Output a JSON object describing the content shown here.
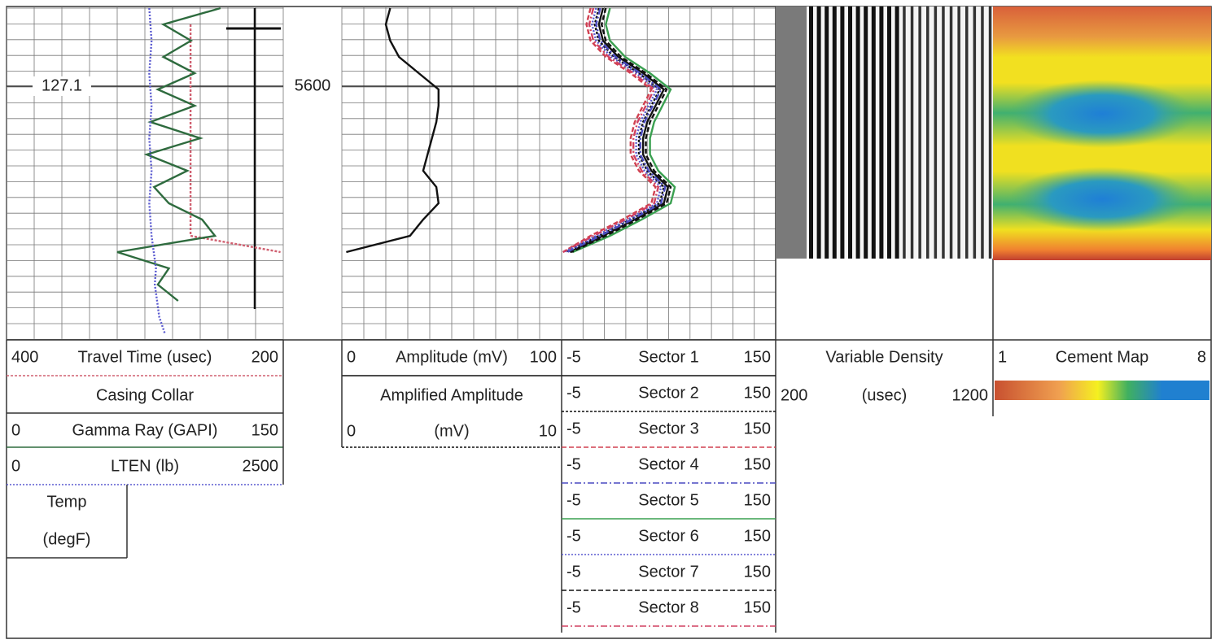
{
  "depth_label": 5600,
  "tension_label": 127.1,
  "track1": [
    {
      "left": 400,
      "name": "Travel Time (usec)",
      "right": 200,
      "color": "#d06070",
      "dash": "3 2",
      "values": [
        null,
        267,
        267,
        267,
        267,
        267,
        267,
        267,
        267,
        267,
        267,
        267,
        267,
        267,
        267,
        202
      ]
    },
    {
      "name": "Casing Collar"
    },
    {
      "left": 0,
      "name": "Gamma Ray (GAPI)",
      "right": 150,
      "color": "#2e6b3e",
      "values": [
        116,
        85,
        100,
        85,
        102,
        82,
        102,
        78,
        105,
        76,
        98,
        80,
        88,
        106,
        113,
        60,
        88,
        82,
        93
      ]
    },
    {
      "left": 0,
      "name": "LTEN (lb)",
      "right": 2500,
      "color": "#5a5ad0",
      "dash": "2 2",
      "values": [
        1290,
        1300,
        1310,
        1300,
        1290,
        1300,
        1310,
        1300,
        1290,
        1300,
        1310,
        1300,
        1290,
        1300,
        1310,
        1330,
        1350,
        1340,
        1360,
        1380,
        1430
      ]
    },
    {
      "name": "Temp",
      "unit": "(degF)"
    }
  ],
  "track2": [
    {
      "left": 0,
      "name": "Amplitude (mV)",
      "right": 100,
      "color": "#111111",
      "values": [
        22,
        20,
        22,
        26,
        35,
        44,
        44,
        43,
        41,
        39,
        37,
        43,
        44,
        37,
        31,
        2
      ]
    },
    {
      "name": "Amplified Amplitude",
      "left": 0,
      "unit": "(mV)",
      "right": 10,
      "color": "#111111",
      "dash": "3 2"
    }
  ],
  "track3": [
    {
      "left": -5,
      "name": "Sector 1",
      "right": 150,
      "color": "#111111",
      "values": [
        25,
        22,
        25,
        36,
        54,
        69,
        63,
        57,
        54,
        54,
        60,
        72,
        69,
        48,
        25,
        1
      ]
    },
    {
      "left": -5,
      "name": "Sector 2",
      "right": 150,
      "color": "#111111",
      "dash": "3 2",
      "values": [
        22,
        19,
        22,
        33,
        51,
        66,
        60,
        54,
        51,
        51,
        57,
        69,
        66,
        45,
        22,
        -2
      ]
    },
    {
      "left": -5,
      "name": "Sector 3",
      "right": 150,
      "color": "#d04050",
      "dash": "6 3",
      "values": [
        16,
        13,
        16,
        27,
        45,
        60,
        54,
        48,
        45,
        45,
        51,
        63,
        60,
        39,
        16,
        -4
      ]
    },
    {
      "left": -5,
      "name": "Sector 4",
      "right": 150,
      "color": "#4a4ac0",
      "dash": "8 3 2 3",
      "values": [
        23,
        20,
        23,
        34,
        52,
        67,
        61,
        55,
        52,
        52,
        58,
        70,
        67,
        46,
        23,
        -1
      ]
    },
    {
      "left": -5,
      "name": "Sector 5",
      "right": 150,
      "color": "#3aa050",
      "values": [
        30,
        27,
        30,
        41,
        59,
        74,
        68,
        62,
        59,
        59,
        65,
        77,
        74,
        53,
        30,
        3
      ]
    },
    {
      "left": -5,
      "name": "Sector 6",
      "right": 150,
      "color": "#5a5ad0",
      "dash": "2 2",
      "values": [
        20,
        17,
        20,
        31,
        49,
        64,
        58,
        52,
        49,
        49,
        55,
        67,
        64,
        43,
        20,
        -3
      ]
    },
    {
      "left": -5,
      "name": "Sector 7",
      "right": 150,
      "color": "#111111",
      "dash": "6 3",
      "values": [
        27,
        24,
        27,
        38,
        56,
        71,
        65,
        59,
        56,
        56,
        62,
        74,
        71,
        50,
        27,
        2
      ]
    },
    {
      "left": -5,
      "name": "Sector 8",
      "right": 150,
      "color": "#d04060",
      "dash": "8 3 2 3",
      "values": [
        18,
        15,
        18,
        29,
        47,
        62,
        56,
        50,
        47,
        47,
        53,
        65,
        62,
        41,
        18,
        -4
      ]
    }
  ],
  "vdl": {
    "name": "Variable Density",
    "left": 200,
    "unit": "(usec)",
    "right": 1200
  },
  "cement": {
    "left": 1,
    "name": "Cement Map",
    "right": 8
  }
}
